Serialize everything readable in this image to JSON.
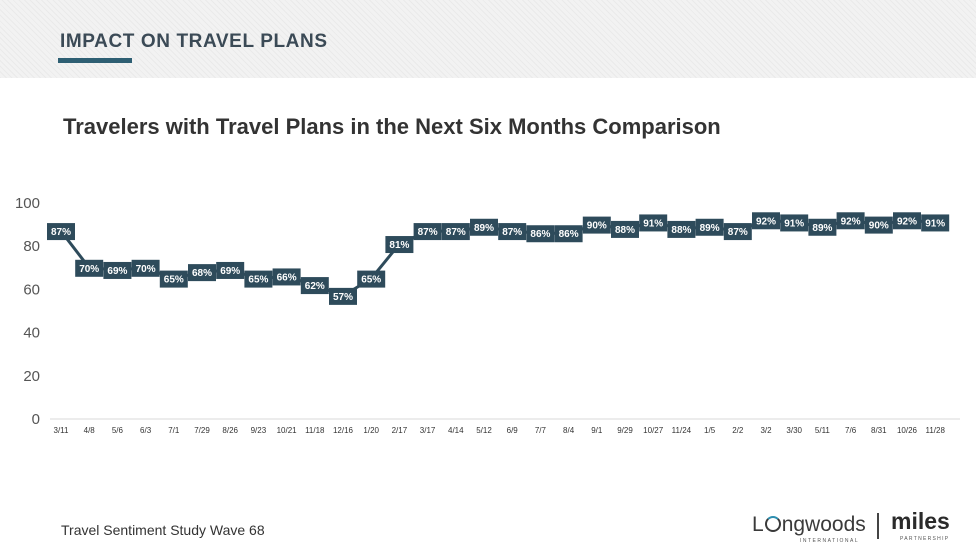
{
  "header": {
    "section_title": "IMPACT ON TRAVEL PLANS"
  },
  "footer": {
    "study": "Travel Sentiment Study Wave 68",
    "logo_longwoods_pre": "L",
    "logo_longwoods_post": "ngwoods",
    "logo_longwoods_sub": "INTERNATIONAL",
    "logo_miles": "miles",
    "logo_miles_sub": "PARTNERSHIP"
  },
  "colors": {
    "line": "#2e4b5b",
    "label_box": "#2e4b5b",
    "accent": "#2e5f73"
  },
  "chart_data": {
    "type": "line",
    "title": "Travelers with Travel Plans in the Next Six Months Comparison",
    "xlabel": "",
    "ylabel": "",
    "ylim": [
      0,
      100
    ],
    "yticks": [
      0,
      20,
      40,
      60,
      80,
      100
    ],
    "grid": false,
    "legend": "none",
    "categories": [
      "3/11",
      "4/8",
      "5/6",
      "6/3",
      "7/1",
      "7/29",
      "8/26",
      "9/23",
      "10/21",
      "11/18",
      "12/16",
      "1/20",
      "2/17",
      "3/17",
      "4/14",
      "5/12",
      "6/9",
      "7/7",
      "8/4",
      "9/1",
      "9/29",
      "10/27",
      "11/24",
      "1/5",
      "2/2",
      "3/2",
      "3/30",
      "5/11",
      "7/6",
      "8/31",
      "10/26",
      "11/28"
    ],
    "values": [
      87,
      70,
      69,
      70,
      65,
      68,
      69,
      65,
      66,
      62,
      57,
      65,
      81,
      87,
      87,
      89,
      87,
      86,
      86,
      90,
      88,
      91,
      88,
      89,
      87,
      92,
      91,
      89,
      92,
      90,
      92,
      91
    ],
    "data_labels": [
      "87%",
      "70%",
      "69%",
      "70%",
      "65%",
      "68%",
      "69%",
      "65%",
      "66%",
      "62%",
      "57%",
      "65%",
      "81%",
      "87%",
      "87%",
      "89%",
      "87%",
      "86%",
      "86%",
      "90%",
      "88%",
      "91%",
      "88%",
      "89%",
      "87%",
      "92%",
      "91%",
      "89%",
      "92%",
      "90%",
      "92%",
      "91%"
    ]
  }
}
